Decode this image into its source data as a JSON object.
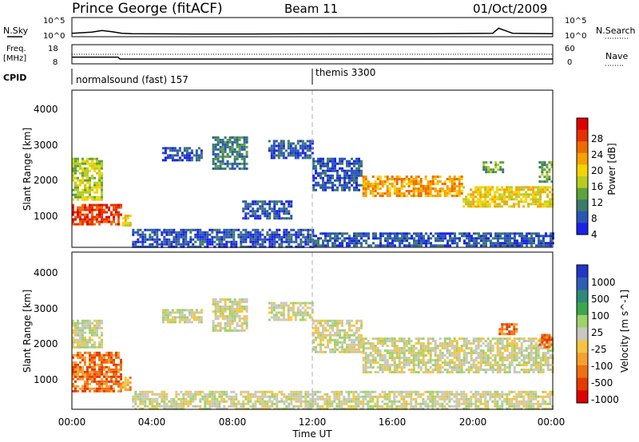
{
  "header": {
    "station": "Prince George (fitACF)",
    "beam": "Beam 11",
    "date": "01/Oct/2009"
  },
  "nsky_panel": {
    "left_label": "N.Sky",
    "left_ticks": [
      "10^5",
      "10^0"
    ],
    "right_ticks": [
      "10^5",
      "10^0"
    ],
    "right_label": "N.Search",
    "right_legend_line": "dotted"
  },
  "freq_panel": {
    "left_label_1": "Freq.",
    "left_label_2": "[MHz]",
    "left_ticks": [
      "18",
      "8"
    ],
    "right_ticks": [
      "60",
      "0"
    ],
    "right_label": "Nave",
    "right_legend_line": "dotted"
  },
  "cpid_panel": {
    "label": "CPID",
    "modes": [
      {
        "name": "normalsound (fast) 157",
        "start_hour": 0
      },
      {
        "name": "themis 3300",
        "start_hour": 12
      }
    ]
  },
  "power_panel": {
    "ylabel": "Slant Range [km]",
    "yticks": [
      "4000",
      "3000",
      "2000",
      "1000"
    ],
    "colorbar_label": "Power [dB]",
    "colorbar_ticks": [
      "28",
      "24",
      "20",
      "16",
      "12",
      "8",
      "4"
    ],
    "colors": [
      "#1a22e6",
      "#2a55b8",
      "#3c7a6a",
      "#5ea33d",
      "#b8cc20",
      "#f2d500",
      "#f5a200",
      "#ef6b00",
      "#e83000",
      "#e00000"
    ]
  },
  "velocity_panel": {
    "ylabel": "Slant Range [km]",
    "yticks": [
      "4000",
      "3000",
      "2000",
      "1000"
    ],
    "colorbar_label": "Velocity [m s^-1]",
    "colorbar_ticks": [
      "1000",
      "500",
      "100",
      "25",
      "-25",
      "-100",
      "-500",
      "-1000"
    ],
    "colors": [
      "#2236c9",
      "#2d60b5",
      "#2f8a7a",
      "#3aa84a",
      "#9fd26b",
      "#c8c8c0",
      "#f5c542",
      "#f5a030",
      "#ef7010",
      "#e63a00",
      "#e00000"
    ]
  },
  "x_axis": {
    "ticks": [
      "00:00",
      "04:00",
      "08:00",
      "12:00",
      "16:00",
      "20:00",
      "00:00"
    ],
    "label": "Time UT"
  },
  "chart_data": [
    {
      "type": "line",
      "name": "nsky",
      "x_hours": [
        0,
        1,
        1.5,
        2,
        2.5,
        3,
        6,
        9,
        12,
        15,
        18,
        21,
        21.3,
        22,
        24
      ],
      "values_log10": [
        0.9,
        1.2,
        1.6,
        1.3,
        0.9,
        0.8,
        0.7,
        0.7,
        0.75,
        0.8,
        0.8,
        0.9,
        2.2,
        0.9,
        0.8
      ],
      "ylim": [
        0,
        5
      ],
      "xlim": [
        0,
        24
      ]
    },
    {
      "type": "line",
      "name": "frequency",
      "x_hours": [
        0,
        2.3,
        2.4,
        3.5,
        6,
        9,
        10,
        12,
        24
      ],
      "values_mhz": [
        11.5,
        11.5,
        10.5,
        10.5,
        10.5,
        10.5,
        10.5,
        10.5,
        10.5
      ],
      "ylim": [
        8,
        18
      ]
    },
    {
      "type": "heatmap",
      "name": "power",
      "xlim": [
        0,
        24
      ],
      "ylim": [
        180,
        4600
      ],
      "regions": [
        {
          "t0": 0.0,
          "t1": 2.4,
          "r0": 800,
          "r1": 1400,
          "level": 8
        },
        {
          "t0": 0.0,
          "t1": 1.5,
          "r0": 1500,
          "r1": 2700,
          "level": 4
        },
        {
          "t0": 2.5,
          "t1": 2.9,
          "r0": 800,
          "r1": 1100,
          "level": 5
        },
        {
          "t0": 4.5,
          "t1": 6.5,
          "r0": 2600,
          "r1": 3000,
          "level": 1
        },
        {
          "t0": 7.0,
          "t1": 8.7,
          "r0": 2400,
          "r1": 3300,
          "level": 2
        },
        {
          "t0": 9.8,
          "t1": 12.0,
          "r0": 2700,
          "r1": 3200,
          "level": 1
        },
        {
          "t0": 12.0,
          "t1": 14.5,
          "r0": 1800,
          "r1": 2700,
          "level": 1
        },
        {
          "t0": 14.5,
          "t1": 19.5,
          "r0": 1600,
          "r1": 2200,
          "level": 6
        },
        {
          "t0": 19.5,
          "t1": 24.0,
          "r0": 1300,
          "r1": 1900,
          "level": 5
        },
        {
          "t0": 8.5,
          "t1": 11.0,
          "r0": 1000,
          "r1": 1500,
          "level": 1
        },
        {
          "t0": 3.0,
          "t1": 12.0,
          "r0": 200,
          "r1": 700,
          "level": 1
        },
        {
          "t0": 12.0,
          "t1": 24.0,
          "r0": 200,
          "r1": 600,
          "level": 1
        },
        {
          "t0": 20.5,
          "t1": 21.5,
          "r0": 2300,
          "r1": 2600,
          "level": 3
        },
        {
          "t0": 23.3,
          "t1": 24.0,
          "r0": 2000,
          "r1": 2600,
          "level": 3
        }
      ]
    },
    {
      "type": "heatmap",
      "name": "velocity",
      "xlim": [
        0,
        24
      ],
      "ylim": [
        180,
        4600
      ],
      "regions": [
        {
          "t0": 0.0,
          "t1": 2.4,
          "r0": 700,
          "r1": 1800,
          "level": 8
        },
        {
          "t0": 0.0,
          "t1": 1.5,
          "r0": 1900,
          "r1": 2700,
          "level": 5
        },
        {
          "t0": 2.5,
          "t1": 2.9,
          "r0": 700,
          "r1": 1100,
          "level": 7
        },
        {
          "t0": 4.5,
          "t1": 6.5,
          "r0": 2600,
          "r1": 3000,
          "level": 5
        },
        {
          "t0": 7.0,
          "t1": 8.7,
          "r0": 2400,
          "r1": 3300,
          "level": 5
        },
        {
          "t0": 9.8,
          "t1": 12.0,
          "r0": 2700,
          "r1": 3200,
          "level": 5
        },
        {
          "t0": 12.0,
          "t1": 14.5,
          "r0": 1800,
          "r1": 2700,
          "level": 5
        },
        {
          "t0": 14.5,
          "t1": 24.0,
          "r0": 1200,
          "r1": 2200,
          "level": 5
        },
        {
          "t0": 3.0,
          "t1": 24.0,
          "r0": 200,
          "r1": 700,
          "level": 5
        },
        {
          "t0": 21.3,
          "t1": 22.2,
          "r0": 2300,
          "r1": 2600,
          "level": 8
        },
        {
          "t0": 23.3,
          "t1": 24.0,
          "r0": 1900,
          "r1": 2300,
          "level": 8
        }
      ]
    }
  ]
}
